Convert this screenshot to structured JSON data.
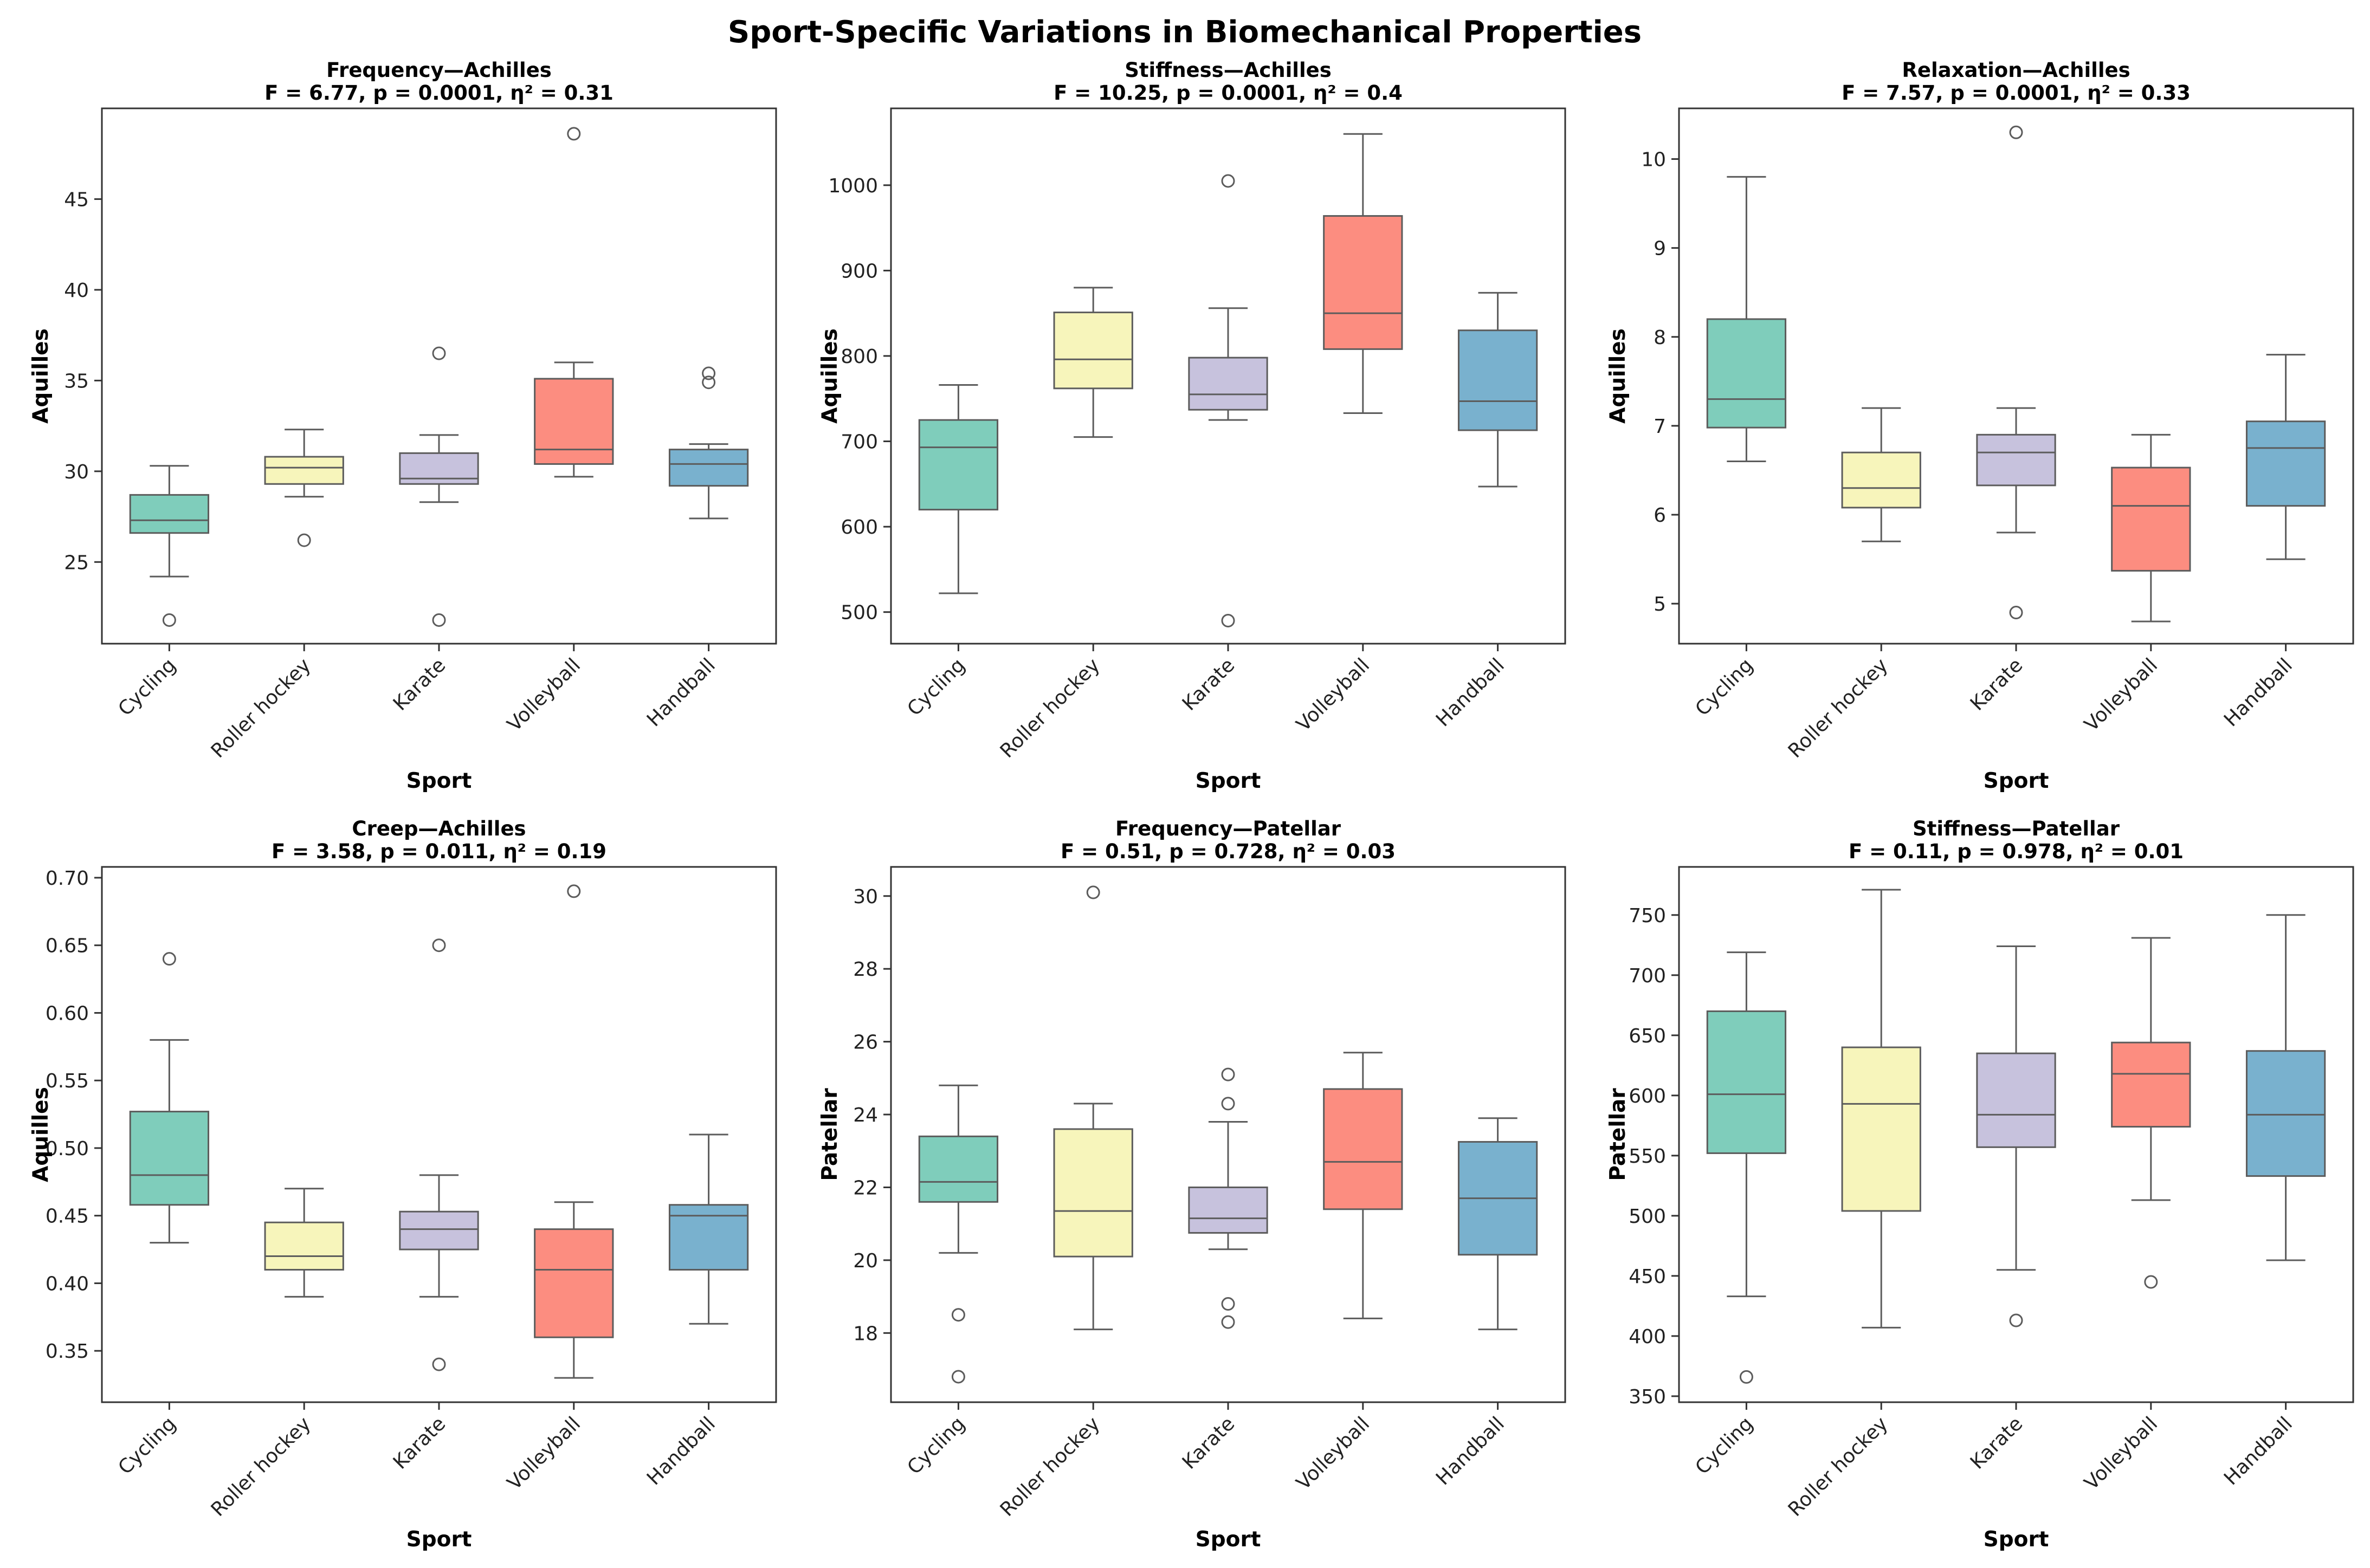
{
  "figure_title": "Sport-Specific Variations in Biomechanical Properties",
  "colors": {
    "Cycling": "#7fcdbb",
    "Roller hockey": "#f7f5bb",
    "Karate": "#c7c2dd",
    "Volleyball": "#fc8d80",
    "Handball": "#79b1ce",
    "line": "#5c5c5c"
  },
  "chart_data": [
    {
      "type": "box",
      "title": "Frequency—Achilles",
      "subtitle": "F = 6.77, p = 0.0001, η² = 0.31",
      "xlabel": "Sport",
      "ylabel": "Aquilles",
      "categories": [
        "Cycling",
        "Roller hockey",
        "Karate",
        "Volleyball",
        "Handball"
      ],
      "ylim": [
        20.5,
        50.0
      ],
      "yticks": [
        25,
        30,
        35,
        40,
        45
      ],
      "boxes": [
        {
          "whislo": 24.2,
          "q1": 26.6,
          "med": 27.3,
          "q3": 28.7,
          "whishi": 30.3,
          "fliers": [
            21.8
          ]
        },
        {
          "whislo": 28.6,
          "q1": 29.3,
          "med": 30.2,
          "q3": 30.8,
          "whishi": 32.3,
          "fliers": [
            26.2
          ]
        },
        {
          "whislo": 28.3,
          "q1": 29.3,
          "med": 29.6,
          "q3": 31.0,
          "whishi": 32.0,
          "fliers": [
            21.8,
            36.5
          ]
        },
        {
          "whislo": 29.7,
          "q1": 30.4,
          "med": 31.2,
          "q3": 35.1,
          "whishi": 36.0,
          "fliers": [
            48.6
          ]
        },
        {
          "whislo": 27.4,
          "q1": 29.2,
          "med": 30.4,
          "q3": 31.2,
          "whishi": 31.5,
          "fliers": [
            34.9,
            35.4
          ]
        }
      ]
    },
    {
      "type": "box",
      "title": "Stiffness—Achilles",
      "subtitle": "F = 10.25, p = 0.0001, η² = 0.4",
      "xlabel": "Sport",
      "ylabel": "Aquilles",
      "categories": [
        "Cycling",
        "Roller hockey",
        "Karate",
        "Volleyball",
        "Handball"
      ],
      "ylim": [
        463,
        1090
      ],
      "yticks": [
        500,
        600,
        700,
        800,
        900,
        1000
      ],
      "boxes": [
        {
          "whislo": 522,
          "q1": 620,
          "med": 693,
          "q3": 725,
          "whishi": 766,
          "fliers": []
        },
        {
          "whislo": 705,
          "q1": 762,
          "med": 796,
          "q3": 851,
          "whishi": 880,
          "fliers": []
        },
        {
          "whislo": 725,
          "q1": 737,
          "med": 755,
          "q3": 798,
          "whishi": 856,
          "fliers": [
            490,
            1005
          ]
        },
        {
          "whislo": 733,
          "q1": 808,
          "med": 850,
          "q3": 964,
          "whishi": 1060,
          "fliers": []
        },
        {
          "whislo": 647,
          "q1": 713,
          "med": 747,
          "q3": 830,
          "whishi": 874,
          "fliers": []
        }
      ]
    },
    {
      "type": "box",
      "title": "Relaxation—Achilles",
      "subtitle": "F = 7.57, p = 0.0001, η² = 0.33",
      "xlabel": "Sport",
      "ylabel": "Aquilles",
      "categories": [
        "Cycling",
        "Roller hockey",
        "Karate",
        "Volleyball",
        "Handball"
      ],
      "ylim": [
        4.55,
        10.57
      ],
      "yticks": [
        5,
        6,
        7,
        8,
        9,
        10
      ],
      "boxes": [
        {
          "whislo": 6.6,
          "q1": 6.98,
          "med": 7.3,
          "q3": 8.2,
          "whishi": 9.8,
          "fliers": []
        },
        {
          "whislo": 5.7,
          "q1": 6.08,
          "med": 6.3,
          "q3": 6.7,
          "whishi": 7.2,
          "fliers": []
        },
        {
          "whislo": 5.8,
          "q1": 6.33,
          "med": 6.7,
          "q3": 6.9,
          "whishi": 7.2,
          "fliers": [
            4.9,
            10.3
          ]
        },
        {
          "whislo": 4.8,
          "q1": 5.37,
          "med": 6.1,
          "q3": 6.53,
          "whishi": 6.9,
          "fliers": []
        },
        {
          "whislo": 5.5,
          "q1": 6.1,
          "med": 6.75,
          "q3": 7.05,
          "whishi": 7.8,
          "fliers": []
        }
      ]
    },
    {
      "type": "box",
      "title": "Creep—Achilles",
      "subtitle": "F = 3.58, p = 0.011, η² = 0.19",
      "xlabel": "Sport",
      "ylabel": "Aquilles",
      "categories": [
        "Cycling",
        "Roller hockey",
        "Karate",
        "Volleyball",
        "Handball"
      ],
      "ylim": [
        0.312,
        0.708
      ],
      "yticks": [
        0.35,
        0.4,
        0.45,
        0.5,
        0.55,
        0.6,
        0.65,
        0.7
      ],
      "boxes": [
        {
          "whislo": 0.43,
          "q1": 0.458,
          "med": 0.48,
          "q3": 0.527,
          "whishi": 0.58,
          "fliers": [
            0.64
          ]
        },
        {
          "whislo": 0.39,
          "q1": 0.41,
          "med": 0.42,
          "q3": 0.445,
          "whishi": 0.47,
          "fliers": []
        },
        {
          "whislo": 0.39,
          "q1": 0.425,
          "med": 0.44,
          "q3": 0.453,
          "whishi": 0.48,
          "fliers": [
            0.34,
            0.65
          ]
        },
        {
          "whislo": 0.33,
          "q1": 0.36,
          "med": 0.41,
          "q3": 0.44,
          "whishi": 0.46,
          "fliers": [
            0.69
          ]
        },
        {
          "whislo": 0.37,
          "q1": 0.41,
          "med": 0.45,
          "q3": 0.458,
          "whishi": 0.51,
          "fliers": []
        }
      ]
    },
    {
      "type": "box",
      "title": "Frequency—Patellar",
      "subtitle": "F = 0.51, p = 0.728, η² = 0.03",
      "xlabel": "Sport",
      "ylabel": "Patellar",
      "categories": [
        "Cycling",
        "Roller hockey",
        "Karate",
        "Volleyball",
        "Handball"
      ],
      "ylim": [
        16.1,
        30.8
      ],
      "yticks": [
        18,
        20,
        22,
        24,
        26,
        28,
        30
      ],
      "boxes": [
        {
          "whislo": 20.2,
          "q1": 21.6,
          "med": 22.15,
          "q3": 23.4,
          "whishi": 24.8,
          "fliers": [
            16.8,
            18.5
          ]
        },
        {
          "whislo": 18.1,
          "q1": 20.1,
          "med": 21.35,
          "q3": 23.6,
          "whishi": 24.3,
          "fliers": [
            30.1
          ]
        },
        {
          "whislo": 20.3,
          "q1": 20.75,
          "med": 21.15,
          "q3": 22.0,
          "whishi": 23.8,
          "fliers": [
            18.3,
            18.8,
            24.3,
            25.1
          ]
        },
        {
          "whislo": 18.4,
          "q1": 21.4,
          "med": 22.7,
          "q3": 24.7,
          "whishi": 25.7,
          "fliers": []
        },
        {
          "whislo": 18.1,
          "q1": 20.15,
          "med": 21.7,
          "q3": 23.25,
          "whishi": 23.9,
          "fliers": []
        }
      ]
    },
    {
      "type": "box",
      "title": "Stiffness—Patellar",
      "subtitle": "F = 0.11, p = 0.978, η² = 0.01",
      "xlabel": "Sport",
      "ylabel": "Patellar",
      "categories": [
        "Cycling",
        "Roller hockey",
        "Karate",
        "Volleyball",
        "Handball"
      ],
      "ylim": [
        345,
        790
      ],
      "yticks": [
        350,
        400,
        450,
        500,
        550,
        600,
        650,
        700,
        750
      ],
      "boxes": [
        {
          "whislo": 433,
          "q1": 552,
          "med": 601,
          "q3": 670,
          "whishi": 719,
          "fliers": [
            366
          ]
        },
        {
          "whislo": 407,
          "q1": 504,
          "med": 593,
          "q3": 640,
          "whishi": 771,
          "fliers": []
        },
        {
          "whislo": 455,
          "q1": 557,
          "med": 584,
          "q3": 635,
          "whishi": 724,
          "fliers": [
            413
          ]
        },
        {
          "whislo": 513,
          "q1": 574,
          "med": 618,
          "q3": 644,
          "whishi": 731,
          "fliers": [
            445
          ]
        },
        {
          "whislo": 463,
          "q1": 533,
          "med": 584,
          "q3": 637,
          "whishi": 750,
          "fliers": []
        }
      ]
    }
  ]
}
